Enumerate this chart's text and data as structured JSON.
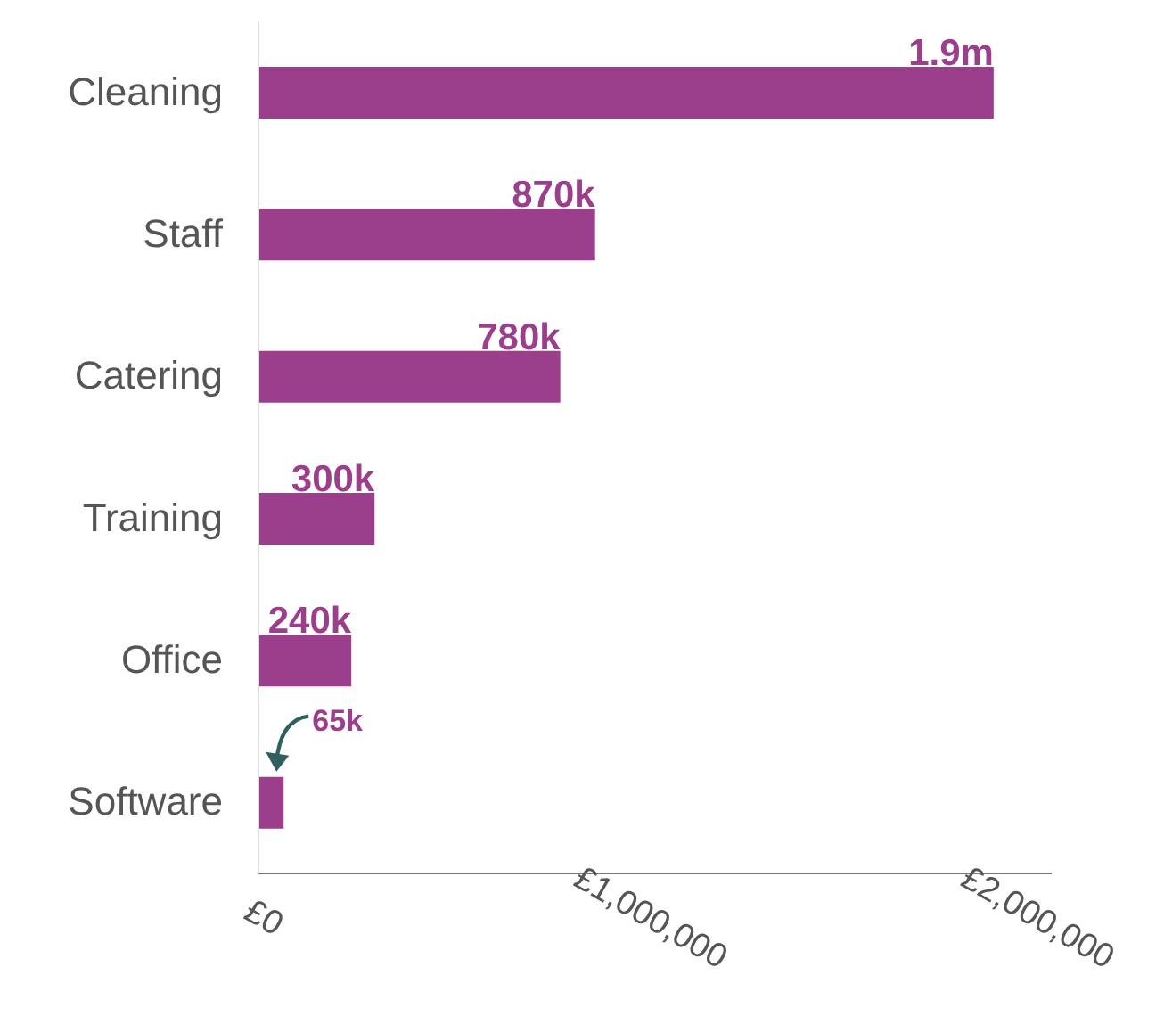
{
  "chart_data": {
    "type": "bar",
    "orientation": "horizontal",
    "categories": [
      "Cleaning",
      "Staff",
      "Catering",
      "Training",
      "Office",
      "Software"
    ],
    "values": [
      1900000,
      870000,
      780000,
      300000,
      240000,
      65000
    ],
    "value_labels": [
      "1.9m",
      "870k",
      "780k",
      "300k",
      "240k",
      "65k"
    ],
    "color": "#9b3f8d",
    "xlim": [
      0,
      2050000
    ],
    "xticks": [
      {
        "value": 0,
        "label": "£0"
      },
      {
        "value": 1000000,
        "label": "£1,000,000"
      },
      {
        "value": 2000000,
        "label": "£2,000,000"
      }
    ],
    "grid": false
  }
}
